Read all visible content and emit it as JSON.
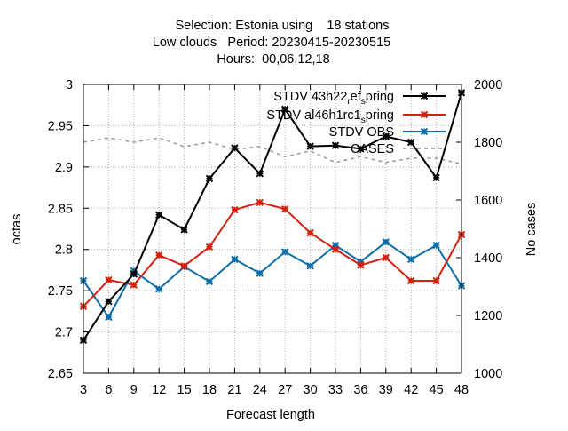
{
  "chart_data": {
    "type": "line",
    "title_lines": [
      "Selection: Estonia using    18 stations",
      "Low clouds   Period: 20230415-20230515",
      "Hours:  00,06,12,18"
    ],
    "xlabel": "Forecast length",
    "ylabel": "octas",
    "y2label": "No cases",
    "x": [
      3,
      6,
      9,
      12,
      15,
      18,
      21,
      24,
      27,
      30,
      33,
      36,
      39,
      42,
      45,
      48
    ],
    "xlim": [
      3,
      48
    ],
    "ylim": [
      2.65,
      3.0
    ],
    "y2lim": [
      1000,
      2000
    ],
    "yticks": [
      "2.65",
      "2.7",
      "2.75",
      "2.8",
      "2.85",
      "2.9",
      "2.95",
      "3"
    ],
    "y2ticks": [
      "1000",
      "1200",
      "1400",
      "1600",
      "1800",
      "2000"
    ],
    "grid": true,
    "legend_position": "top-right",
    "series": [
      {
        "name": "STDV 43h22_ref_spring",
        "legend_parts": [
          {
            "t": "STDV 43h22",
            "s": "normal"
          },
          {
            "t": "r",
            "s": "sub"
          },
          {
            "t": "ef",
            "s": "normal"
          },
          {
            "t": "s",
            "s": "sub"
          },
          {
            "t": "pring",
            "s": "normal"
          }
        ],
        "color": "#000000",
        "axis": "left",
        "values": [
          2.69,
          2.737,
          2.77,
          2.842,
          2.824,
          2.886,
          2.923,
          2.892,
          2.97,
          2.925,
          2.926,
          2.922,
          2.937,
          2.93,
          2.887,
          2.99
        ]
      },
      {
        "name": "STDV al46h1rc1_spring",
        "legend_parts": [
          {
            "t": "STDV al46h1rc1",
            "s": "normal"
          },
          {
            "t": "s",
            "s": "sub"
          },
          {
            "t": "pring",
            "s": "normal"
          }
        ],
        "color": "#d4210f",
        "axis": "left",
        "values": [
          2.731,
          2.763,
          2.757,
          2.793,
          2.78,
          2.803,
          2.848,
          2.857,
          2.849,
          2.82,
          2.8,
          2.781,
          2.79,
          2.762,
          2.762,
          2.818
        ]
      },
      {
        "name": "STDV OBS",
        "legend_parts": [
          {
            "t": "STDV OBS",
            "s": "normal"
          }
        ],
        "color": "#0d6fa8",
        "axis": "left",
        "values": [
          2.762,
          2.718,
          2.774,
          2.752,
          2.779,
          2.761,
          2.788,
          2.771,
          2.797,
          2.78,
          2.805,
          2.785,
          2.809,
          2.788,
          2.805,
          2.756
        ]
      },
      {
        "name": "CASES",
        "legend_parts": [
          {
            "t": "CASES",
            "s": "normal"
          }
        ],
        "color": "#999999",
        "axis": "right",
        "dashed": true,
        "values": [
          1800,
          1815,
          1800,
          1815,
          1785,
          1800,
          1775,
          1785,
          1750,
          1770,
          1730,
          1750,
          1730,
          1745,
          1745,
          1725
        ]
      }
    ]
  }
}
